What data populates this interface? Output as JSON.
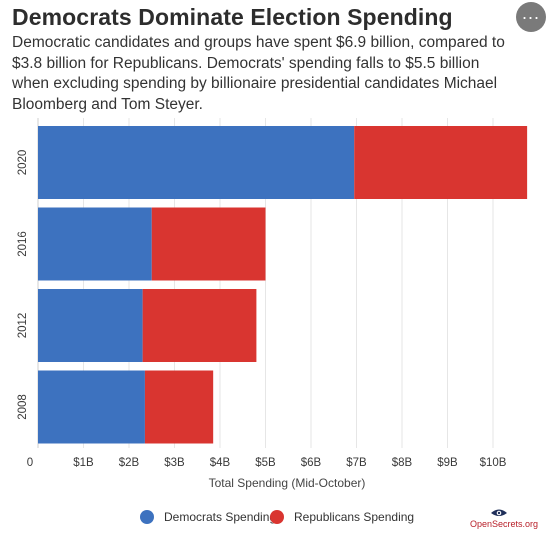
{
  "header": {
    "title": "Democrats Dominate Election Spending",
    "subtitle": "Democratic candidates and groups have spent $6.9 billion, compared to $3.8 billion for Republicans. Democrats' spending falls to $5.5 billion when excluding spending by billionaire presidential candidates Michael Bloomberg and Tom Steyer."
  },
  "menu": {
    "icon": "more-horizontal-icon"
  },
  "chart_data": {
    "type": "bar",
    "orientation": "horizontal",
    "stacked": true,
    "categories": [
      "2020",
      "2016",
      "2012",
      "2008"
    ],
    "series": [
      {
        "name": "Democrats Spending",
        "color": "#3d72bf",
        "values": [
          6.95,
          2.5,
          2.3,
          2.35
        ]
      },
      {
        "name": "Republicans Spending",
        "color": "#d93530",
        "values": [
          3.8,
          2.5,
          2.5,
          1.5
        ]
      }
    ],
    "xlabel": "Total Spending (Mid-October)",
    "xticks": [
      "0",
      "$1B",
      "$2B",
      "$3B",
      "$4B",
      "$5B",
      "$6B",
      "$7B",
      "$8B",
      "$9B",
      "$10B"
    ],
    "xlim": [
      0,
      11
    ],
    "grid": true,
    "legend_position": "bottom"
  },
  "legend": {
    "items": [
      {
        "label": "Democrats Spending",
        "color": "#3d72bf"
      },
      {
        "label": "Republicans Spending",
        "color": "#d93530"
      }
    ]
  },
  "source_logo": {
    "text": "OpenSecrets.org",
    "icon": "eye-icon"
  }
}
